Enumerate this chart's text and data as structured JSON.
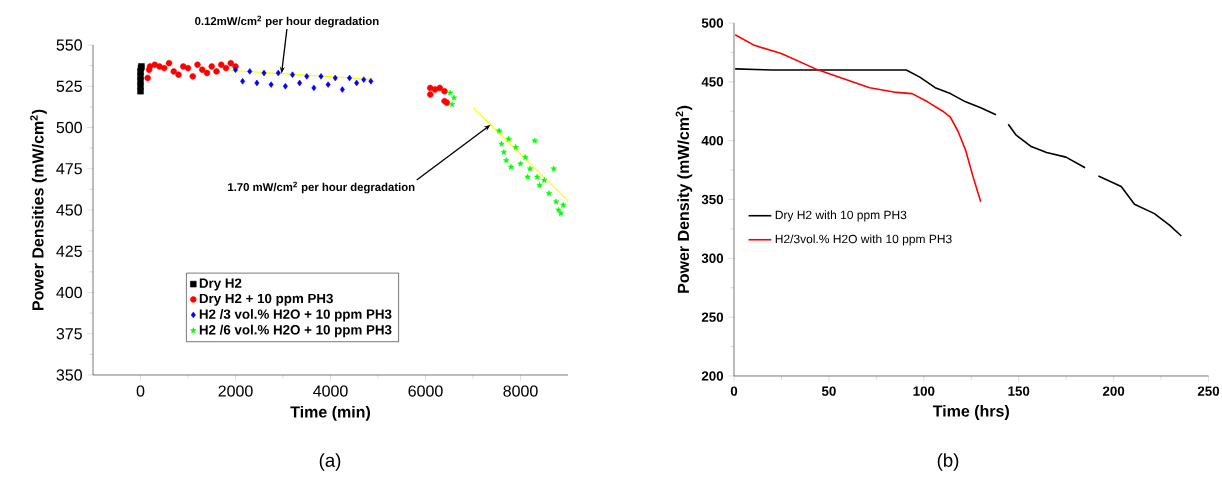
{
  "chart_data": [
    {
      "type": "scatter",
      "xlabel": "Time (min)",
      "ylabel": "Power Densities (mW/cm$^{2}$)",
      "xlim": [
        -1000,
        9000
      ],
      "ylim": [
        350,
        550
      ],
      "xticks": [
        0,
        2000,
        4000,
        6000,
        8000
      ],
      "yticks": [
        350,
        375,
        400,
        425,
        450,
        475,
        500,
        525,
        550
      ],
      "grid": false,
      "legend": "bottom",
      "series": [
        {
          "name": "Dry H2",
          "color": "#000000",
          "marker": "square",
          "x": [
            0,
            0,
            0,
            0,
            0,
            10,
            20
          ],
          "values": [
            522,
            525,
            528,
            531,
            534,
            536,
            537
          ]
        },
        {
          "name": "Dry H2 + 10 ppm PH3",
          "color": "#ff0000",
          "marker": "circle",
          "x": [
            150,
            180,
            200,
            300,
            400,
            500,
            600,
            700,
            800,
            900,
            1000,
            1100,
            1200,
            1300,
            1400,
            1500,
            1600,
            1700,
            1800,
            1900,
            2000,
            6100,
            6100,
            6200,
            6300,
            6400,
            6400,
            6450
          ],
          "values": [
            530,
            535,
            537,
            538,
            537,
            536,
            539,
            534,
            532,
            537,
            536,
            531,
            538,
            535,
            533,
            537,
            534,
            538,
            536,
            539,
            537,
            520,
            524,
            523,
            524,
            522,
            516,
            515
          ]
        },
        {
          "name": "H2 /3 vol.% H2O + 10 ppm PH3",
          "color": "#0000ff",
          "marker": "diamond",
          "x": [
            2000,
            2150,
            2300,
            2450,
            2600,
            2750,
            2900,
            3050,
            3200,
            3350,
            3500,
            3650,
            3800,
            3950,
            4100,
            4250,
            4400,
            4550,
            4700,
            4850
          ],
          "values": [
            535,
            528,
            534,
            527,
            533,
            526,
            533,
            525,
            532,
            527,
            531,
            524,
            531,
            526,
            530,
            523,
            530,
            527,
            529,
            528
          ]
        },
        {
          "name": "H2 /6 vol.% H2O + 10 ppm PH3",
          "color": "#00ff00",
          "marker": "star",
          "x": [
            6520,
            6560,
            6600,
            7550,
            7600,
            7650,
            7700,
            7750,
            7800,
            7900,
            8000,
            8100,
            8150,
            8200,
            8300,
            8350,
            8400,
            8500,
            8600,
            8700,
            8750,
            8800,
            8850,
            8900
          ],
          "values": [
            521,
            514,
            518,
            498,
            490,
            485,
            480,
            493,
            476,
            488,
            478,
            482,
            470,
            475,
            492,
            470,
            465,
            468,
            460,
            475,
            455,
            450,
            448,
            453
          ]
        },
        {
          "type": "line",
          "color": "#ffff00",
          "x": [
            1900,
            4840
          ],
          "values": [
            534.6,
            529.3
          ]
        },
        {
          "type": "line",
          "color": "#ffff00",
          "x": [
            7010,
            9000
          ],
          "values": [
            511.8,
            455.7
          ]
        }
      ],
      "annotations": [
        {
          "text": "0.12mW/cm$^{2}$ per hour degradation",
          "x": 2970,
          "y": 532.7
        },
        {
          "text": "1.70 mW/cm$^{2}$ per hour degradation",
          "x": 7370,
          "y": 501.6
        },
        "(a)"
      ]
    },
    {
      "type": "line",
      "xlabel": "Time (hrs)",
      "ylabel": "Power Density (mW/cm$^{2}$)",
      "xlim": [
        0,
        250
      ],
      "ylim": [
        200,
        500
      ],
      "xticks": [
        0,
        50,
        100,
        150,
        200,
        250
      ],
      "yticks": [
        200,
        250,
        300,
        350,
        400,
        450,
        500
      ],
      "grid": false,
      "legend": "left",
      "marker": "none",
      "line_style": "solid",
      "series": [
        {
          "name": "Dry H2 with 10 ppm PH3",
          "color": "#000000",
          "x": [
            0.6,
            20,
            40,
            60,
            80,
            90.8,
            97.9,
            106,
            114,
            122,
            130,
            138,
            141,
            144.5,
            148.5,
            156.6,
            164.7,
            174.9,
            185,
            188,
            192,
            204,
            211,
            221.5,
            229.6,
            235.7
          ],
          "values": [
            461,
            460,
            460,
            460,
            460,
            460,
            454,
            445,
            440,
            433,
            428,
            422,
            null,
            414,
            405,
            395,
            390,
            386,
            377,
            null,
            370,
            361,
            346,
            338,
            328,
            319
          ]
        },
        {
          "name": "H2/3vol.% H2O with 10 ppm PH3",
          "color": "#ff0000",
          "x": [
            0.6,
            10.7,
            24.9,
            43,
            57,
            71.5,
            85.7,
            93.8,
            102,
            110,
            114,
            118,
            122,
            126,
            130
          ],
          "values": [
            490,
            481,
            474,
            461,
            453,
            445,
            441,
            440,
            433,
            425,
            420,
            408,
            392,
            369,
            348
          ]
        }
      ],
      "annotations": [
        "(b)"
      ]
    }
  ]
}
